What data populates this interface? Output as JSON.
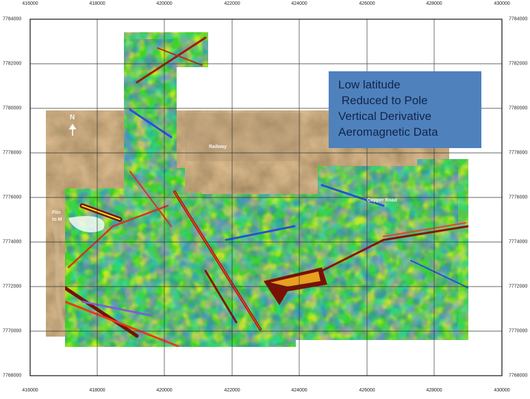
{
  "legend": {
    "lines": [
      "Low latitude",
      " Reduced to Pole",
      "Vertical Derivative",
      "Aeromagnetic Data"
    ],
    "background": "#4f81bd",
    "text_color": "#10254a"
  },
  "axes": {
    "eastings": [
      "416000",
      "418000",
      "420000",
      "422000",
      "424000",
      "426000",
      "428000",
      "430000"
    ],
    "northings": [
      "7784000",
      "7782000",
      "7780000",
      "7778000",
      "7776000",
      "7774000",
      "7772000",
      "7770000",
      "7768000"
    ]
  },
  "map_labels": {
    "north": "N",
    "railway": "Railway",
    "road": "Copper Road",
    "west_text_1": "Flin",
    "west_text_2": "to M"
  },
  "palette": {
    "satellite": [
      "#8b6a45",
      "#a07c52",
      "#b8946a",
      "#6e5a3e",
      "#c3a57c"
    ],
    "magnetic": [
      "#2bd11b",
      "#7ef25a",
      "#f2f21c",
      "#17d9e0",
      "#2a5df0",
      "#c27ae0",
      "#e83a1b",
      "#7a1005"
    ]
  }
}
